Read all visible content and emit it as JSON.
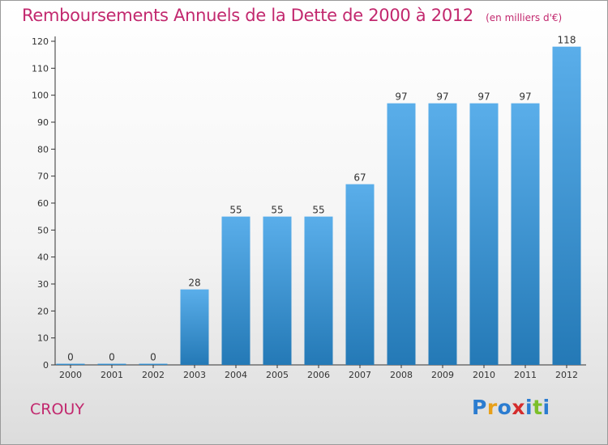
{
  "title": "Remboursements Annuels de la Dette de 2000 à 2012",
  "unit": "(en milliers d'€)",
  "commune": "CROUY",
  "logo": {
    "letters": [
      "P",
      "r",
      "o",
      "x",
      "i",
      "t",
      "i"
    ],
    "colors": [
      "#2b7cd0",
      "#e8a019",
      "#2b7cd0",
      "#d42c2c",
      "#2b7cd0",
      "#7cbf2a",
      "#2b7cd0"
    ]
  },
  "colors": {
    "accent": "#c2286e",
    "bar_top": "#5aaeea",
    "bar_bottom": "#2479b6"
  },
  "chart_data": {
    "type": "bar",
    "categories": [
      "2000",
      "2001",
      "2002",
      "2003",
      "2004",
      "2005",
      "2006",
      "2007",
      "2008",
      "2009",
      "2010",
      "2011",
      "2012"
    ],
    "values": [
      0,
      0,
      0,
      28,
      55,
      55,
      55,
      67,
      97,
      97,
      97,
      97,
      118
    ],
    "data_labels": [
      "0",
      "0",
      "0",
      "28",
      "55",
      "55",
      "55",
      "67",
      "97",
      "97",
      "97",
      "97",
      "118"
    ],
    "yticks": [
      0,
      10,
      20,
      30,
      40,
      50,
      60,
      70,
      80,
      90,
      100,
      110,
      120
    ],
    "ylim": [
      0,
      120
    ],
    "grid": false,
    "title": "Remboursements Annuels de la Dette de 2000 à 2012",
    "xlabel": "",
    "ylabel": ""
  }
}
